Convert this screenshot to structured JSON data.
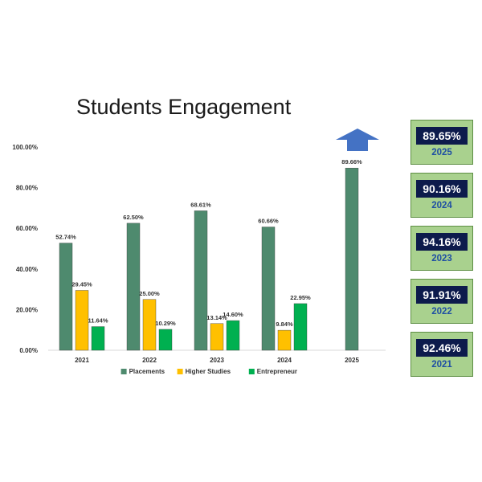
{
  "chart_data": {
    "type": "bar",
    "title": "Students Engagement",
    "xlabel": "",
    "ylabel": "",
    "categories": [
      "2021",
      "2022",
      "2023",
      "2024",
      "2025"
    ],
    "ylim": [
      0,
      100
    ],
    "yticks": [
      "0.00%",
      "20.00%",
      "40.00%",
      "60.00%",
      "80.00%",
      "100.00%"
    ],
    "series": [
      {
        "name": "Placements",
        "color": "#4e8a6e",
        "values": [
          52.74,
          62.5,
          68.61,
          60.66,
          89.66
        ],
        "labels": [
          "52.74%",
          "62.50%",
          "68.61%",
          "60.66%",
          "89.66%"
        ]
      },
      {
        "name": "Higher Studies",
        "color": "#ffc000",
        "values": [
          29.45,
          25.0,
          13.14,
          9.84,
          null
        ],
        "labels": [
          "29.45%",
          "25.00%",
          "13.14%",
          "9.84%",
          null
        ]
      },
      {
        "name": "Entrepreneur",
        "color": "#00b050",
        "values": [
          11.64,
          10.29,
          14.6,
          22.95,
          null
        ],
        "labels": [
          "11.64%",
          "10.29%",
          "14.60%",
          "22.95%",
          null
        ]
      }
    ],
    "legend_position": "bottom",
    "grid": false
  },
  "trend_arrow": {
    "direction": "up",
    "color": "#4472c4",
    "icon": "up-arrow-icon"
  },
  "stat_cards": [
    {
      "value": "89.65%",
      "year": "2025"
    },
    {
      "value": "90.16%",
      "year": "2024"
    },
    {
      "value": "94.16%",
      "year": "2023"
    },
    {
      "value": "91.91%",
      "year": "2022"
    },
    {
      "value": "92.46%",
      "year": "2021"
    }
  ]
}
